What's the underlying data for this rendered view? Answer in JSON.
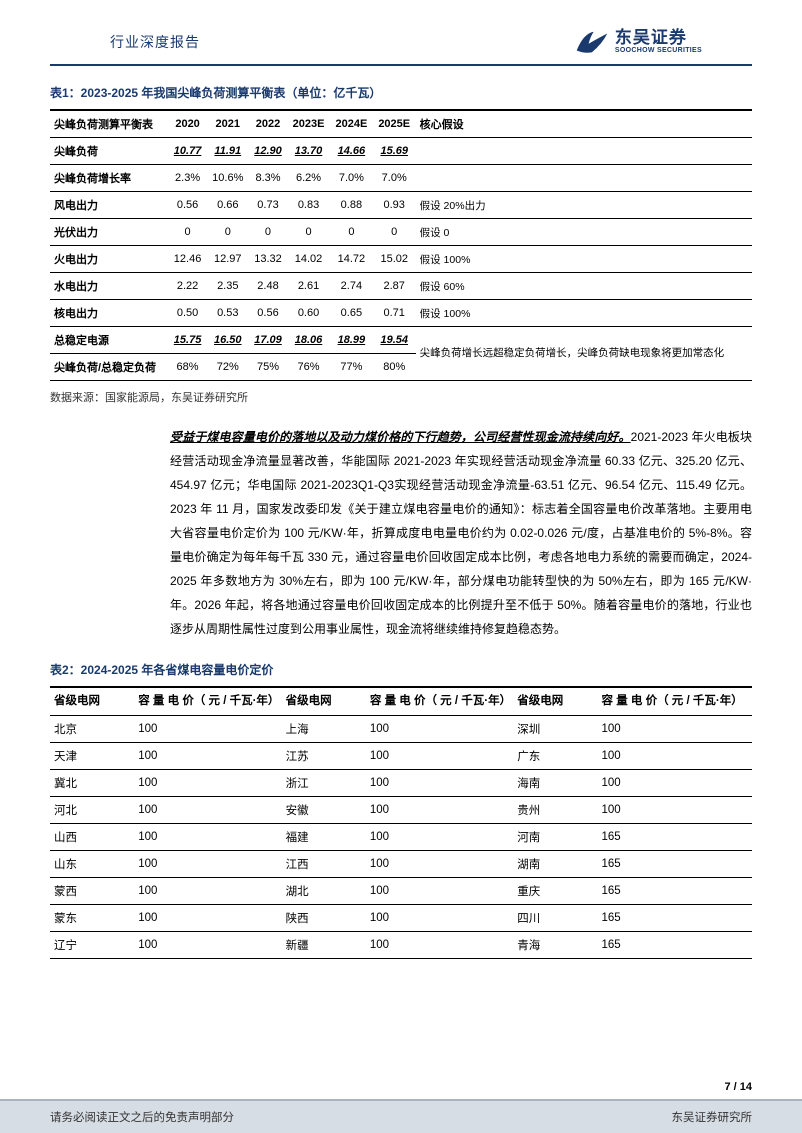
{
  "header": {
    "title": "行业深度报告",
    "logo_cn": "东吴证券",
    "logo_en": "SOOCHOW SECURITIES",
    "logo_color": "#1a3a6e"
  },
  "table1": {
    "caption": "表1：2023-2025 年我国尖峰负荷测算平衡表（单位：亿千瓦）",
    "columns": [
      "尖峰负荷测算平衡表",
      "2020",
      "2021",
      "2022",
      "2023E",
      "2024E",
      "2025E",
      "核心假设"
    ],
    "rows": [
      {
        "label": "尖峰负荷",
        "vals": [
          "10.77",
          "11.91",
          "12.90",
          "13.70",
          "14.66",
          "15.69"
        ],
        "assume": "",
        "style": "ui"
      },
      {
        "label": "尖峰负荷增长率",
        "vals": [
          "2.3%",
          "10.6%",
          "8.3%",
          "6.2%",
          "7.0%",
          "7.0%"
        ],
        "assume": ""
      },
      {
        "label": "风电出力",
        "vals": [
          "0.56",
          "0.66",
          "0.73",
          "0.83",
          "0.88",
          "0.93"
        ],
        "assume": "假设 20%出力"
      },
      {
        "label": "光伏出力",
        "vals": [
          "0",
          "0",
          "0",
          "0",
          "0",
          "0"
        ],
        "assume": "假设 0"
      },
      {
        "label": "火电出力",
        "vals": [
          "12.46",
          "12.97",
          "13.32",
          "14.02",
          "14.72",
          "15.02"
        ],
        "assume": "假设 100%"
      },
      {
        "label": "水电出力",
        "vals": [
          "2.22",
          "2.35",
          "2.48",
          "2.61",
          "2.74",
          "2.87"
        ],
        "assume": "假设 60%"
      },
      {
        "label": "核电出力",
        "vals": [
          "0.50",
          "0.53",
          "0.56",
          "0.60",
          "0.65",
          "0.71"
        ],
        "assume": "假设 100%"
      },
      {
        "label": "总稳定电源",
        "vals": [
          "15.75",
          "16.50",
          "17.09",
          "18.06",
          "18.99",
          "19.54"
        ],
        "assume": "尖峰负荷增长远超稳定",
        "style": "ui"
      },
      {
        "label": "尖峰负荷/总稳定负荷",
        "vals": [
          "68%",
          "72%",
          "75%",
          "76%",
          "77%",
          "80%"
        ],
        "assume": "负荷增长，尖峰负荷缺电现象将更加常态化"
      }
    ],
    "source": "数据来源：国家能源局，东吴证券研究所"
  },
  "paragraph": {
    "lead": "受益于煤电容量电价的落地以及动力煤价格的下行趋势，公司经营性现金流持续向好。",
    "body": "2021-2023 年火电板块经营活动现金净流量显著改善，华能国际 2021-2023 年实现经营活动现金净流量 60.33 亿元、325.20 亿元、454.97 亿元；华电国际 2021-2023Q1-Q3实现经营活动现金净流量-63.51 亿元、96.54 亿元、115.49 亿元。2023 年 11 月，国家发改委印发《关于建立煤电容量电价的通知》：标志着全国容量电价改革落地。主要用电大省容量电价定价为 100 元/KW·年，折算成度电电量电价约为 0.02-0.026 元/度，占基准电价的 5%-8%。容量电价确定为每年每千瓦 330 元，通过容量电价回收固定成本比例，考虑各地电力系统的需要而确定，2024-2025 年多数地方为 30%左右，即为 100 元/KW·年，部分煤电功能转型快的为 50%左右，即为 165 元/KW·年。2026 年起，将各地通过容量电价回收固定成本的比例提升至不低于 50%。随着容量电价的落地，行业也逐步从周期性属性过度到公用事业属性，现金流将继续维持修复趋稳态势。"
  },
  "table2": {
    "caption": "表2：2024-2025 年各省煤电容量电价定价",
    "header_col1": "省级电网",
    "header_col2": "容 量 电 价（ 元 / 千瓦·年）",
    "rows": [
      [
        "北京",
        "100",
        "上海",
        "100",
        "深圳",
        "100"
      ],
      [
        "天津",
        "100",
        "江苏",
        "100",
        "广东",
        "100"
      ],
      [
        "冀北",
        "100",
        "浙江",
        "100",
        "海南",
        "100"
      ],
      [
        "河北",
        "100",
        "安徽",
        "100",
        "贵州",
        "100"
      ],
      [
        "山西",
        "100",
        "福建",
        "100",
        "河南",
        "165"
      ],
      [
        "山东",
        "100",
        "江西",
        "100",
        "湖南",
        "165"
      ],
      [
        "蒙西",
        "100",
        "湖北",
        "100",
        "重庆",
        "165"
      ],
      [
        "蒙东",
        "100",
        "陕西",
        "100",
        "四川",
        "165"
      ],
      [
        "辽宁",
        "100",
        "新疆",
        "100",
        "青海",
        "165"
      ]
    ]
  },
  "footer": {
    "page": "7 / 14",
    "disclaimer": "请务必阅读正文之后的免责声明部分",
    "institute": "东吴证券研究所"
  }
}
